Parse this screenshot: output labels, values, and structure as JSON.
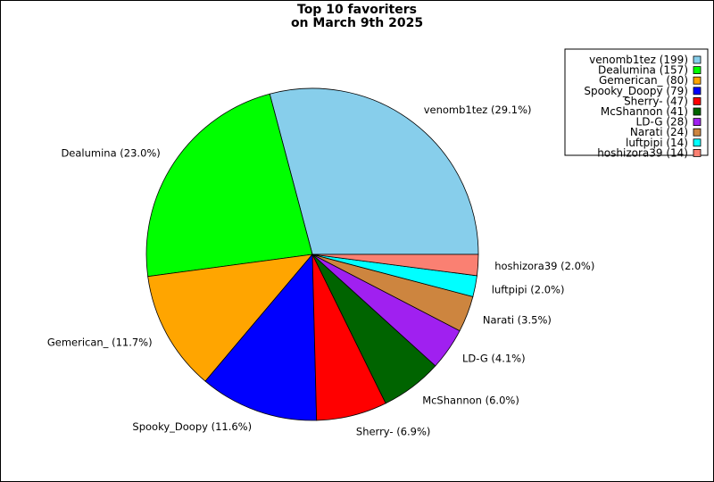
{
  "chart_data": {
    "type": "pie",
    "title": [
      "Top 10 favoriters",
      "on March 9th 2025"
    ],
    "slices": [
      {
        "name": "venomb1tez",
        "value": 199,
        "percent_label": "venomb1tez (29.1%)",
        "legend_label": "venomb1tez (199)",
        "color": "#87ceeb"
      },
      {
        "name": "Dealumina",
        "value": 157,
        "percent_label": "Dealumina (23.0%)",
        "legend_label": "Dealumina (157)",
        "color": "#00ff00"
      },
      {
        "name": "Gemerican_",
        "value": 80,
        "percent_label": "Gemerican_ (11.7%)",
        "legend_label": "Gemerican_ (80)",
        "color": "#ffa500"
      },
      {
        "name": "Spooky_Doopy",
        "value": 79,
        "percent_label": "Spooky_Doopy (11.6%)",
        "legend_label": "Spooky_Doopy (79)",
        "color": "#0000ff"
      },
      {
        "name": "Sherry-",
        "value": 47,
        "percent_label": "Sherry- (6.9%)",
        "legend_label": "Sherry- (47)",
        "color": "#ff0000"
      },
      {
        "name": "McShannon",
        "value": 41,
        "percent_label": "McShannon (6.0%)",
        "legend_label": "McShannon (41)",
        "color": "#006400"
      },
      {
        "name": "LD-G",
        "value": 28,
        "percent_label": "LD-G (4.1%)",
        "legend_label": "LD-G (28)",
        "color": "#a020f0"
      },
      {
        "name": "Narati",
        "value": 24,
        "percent_label": "Narati (3.5%)",
        "legend_label": "Narati (24)",
        "color": "#cd853f"
      },
      {
        "name": "luftpipi",
        "value": 14,
        "percent_label": "luftpipi (2.0%)",
        "legend_label": "luftpipi (14)",
        "color": "#00ffff"
      },
      {
        "name": "hoshizora39",
        "value": 14,
        "percent_label": "hoshizora39 (2.0%)",
        "legend_label": "hoshizora39 (14)",
        "color": "#fa8072"
      }
    ],
    "start_angle_deg": 0,
    "direction": "counterclockwise",
    "legend_placement": "top-right"
  }
}
